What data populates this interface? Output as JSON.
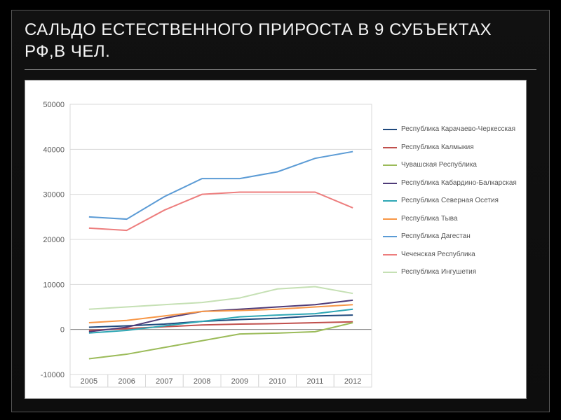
{
  "title": "САЛЬДО ЕСТЕСТВЕННОГО ПРИРОСТА В 9 СУБЪЕКТАХ РФ,В ЧЕЛ.",
  "chart": {
    "type": "line",
    "background_color": "#ffffff",
    "grid_color": "#d9d9d9",
    "axis_color": "#808080",
    "label_fontsize": 11,
    "label_color": "#595959",
    "legend_fontsize": 10,
    "legend_position": "right",
    "x": {
      "categories": [
        "2005",
        "2006",
        "2007",
        "2008",
        "2009",
        "2010",
        "2011",
        "2012"
      ]
    },
    "y": {
      "min": -10000,
      "max": 50000,
      "tick_step": 10000,
      "ticks": [
        "-10000",
        "0",
        "10000",
        "20000",
        "30000",
        "40000",
        "50000"
      ]
    },
    "series": [
      {
        "name": "Республика Карачаево-Черкесская",
        "color": "#1f497d",
        "values": [
          500,
          800,
          1200,
          1800,
          2200,
          2500,
          3000,
          3200
        ]
      },
      {
        "name": "Республика Калмыкия",
        "color": "#c0504d",
        "values": [
          -200,
          200,
          600,
          1000,
          1200,
          1300,
          1500,
          1700
        ]
      },
      {
        "name": "Чувашская Республика",
        "color": "#9bbb59",
        "values": [
          -6500,
          -5500,
          -4000,
          -2500,
          -1000,
          -800,
          -500,
          1500
        ]
      },
      {
        "name": " Республика Кабардино-Балкарская",
        "color": "#4f3b78",
        "values": [
          -500,
          500,
          2500,
          4000,
          4500,
          5000,
          5500,
          6500
        ]
      },
      {
        "name": "Республика Северная Осетия",
        "color": "#2ea7b5",
        "values": [
          -800,
          -200,
          800,
          1800,
          2800,
          3200,
          3500,
          4500
        ]
      },
      {
        "name": "Республика Тыва",
        "color": "#f79646",
        "values": [
          1500,
          2000,
          3000,
          4000,
          4200,
          4500,
          5000,
          5500
        ]
      },
      {
        "name": "Республика Дагестан",
        "color": "#5b9bd5",
        "values": [
          25000,
          24500,
          29500,
          33500,
          33500,
          35000,
          38000,
          39500
        ]
      },
      {
        "name": "Чеченская Республика",
        "color": "#ed7d7d",
        "values": [
          22500,
          22000,
          26500,
          30000,
          30500,
          30500,
          30500,
          27000
        ]
      },
      {
        "name": "Республика Ингушетия",
        "color": "#c5e0b4",
        "values": [
          4500,
          5000,
          5500,
          6000,
          7000,
          9000,
          9500,
          8000
        ]
      }
    ]
  }
}
